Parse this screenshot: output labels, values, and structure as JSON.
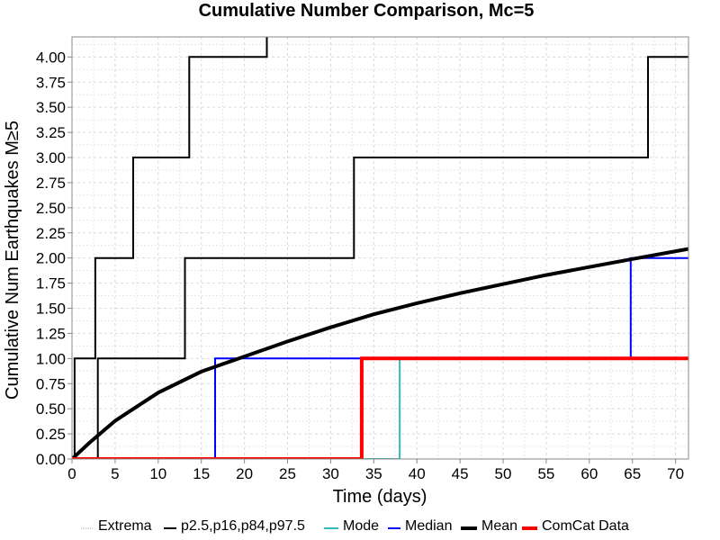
{
  "chart_data": {
    "type": "line",
    "title": "Cumulative Number Comparison, Mc=5",
    "xlabel": "Time (days)",
    "ylabel": "Cumulative Num Earthquakes M≥5",
    "xlim": [
      0,
      71.5
    ],
    "ylim": [
      0,
      4.2
    ],
    "x_ticks": [
      0,
      5,
      10,
      15,
      20,
      25,
      30,
      35,
      40,
      45,
      50,
      55,
      60,
      65,
      70
    ],
    "x_tick_labels": [
      "0",
      "5",
      "10",
      "15",
      "20",
      "25",
      "30",
      "35",
      "40",
      "45",
      "50",
      "55",
      "60",
      "65",
      "70"
    ],
    "y_ticks": [
      0,
      0.25,
      0.5,
      0.75,
      1.0,
      1.25,
      1.5,
      1.75,
      2.0,
      2.25,
      2.5,
      2.75,
      3.0,
      3.25,
      3.5,
      3.75,
      4.0
    ],
    "y_tick_labels": [
      "0.00",
      "0.25",
      "0.50",
      "0.75",
      "1.00",
      "1.25",
      "1.50",
      "1.75",
      "2.00",
      "2.25",
      "2.50",
      "2.75",
      "3.00",
      "3.25",
      "3.50",
      "3.75",
      "4.00"
    ],
    "grid": true,
    "legend_position": "bottom",
    "series": [
      {
        "name": "p2.5,p16,p84,p97.5",
        "color": "#000000",
        "style": "step",
        "points": [
          [
            0,
            0
          ],
          [
            0.3,
            0
          ],
          [
            0.3,
            1
          ],
          [
            2.7,
            1
          ],
          [
            2.7,
            2
          ],
          [
            7.1,
            2
          ],
          [
            7.1,
            3
          ],
          [
            13.6,
            3
          ],
          [
            13.6,
            4
          ],
          [
            22.6,
            4
          ],
          [
            22.6,
            4.2
          ]
        ]
      },
      {
        "name": "",
        "color": "#000000",
        "style": "step",
        "points": [
          [
            0,
            0
          ],
          [
            3.0,
            0
          ],
          [
            3.0,
            1
          ],
          [
            13.1,
            1
          ],
          [
            13.1,
            2
          ],
          [
            32.7,
            2
          ],
          [
            32.7,
            3
          ],
          [
            66.8,
            3
          ],
          [
            66.8,
            4
          ],
          [
            71.5,
            4
          ]
        ]
      },
      {
        "name": "Mode",
        "color": "#33bbbb",
        "style": "step",
        "points": [
          [
            0,
            0
          ],
          [
            38.0,
            0
          ],
          [
            38.0,
            1
          ],
          [
            71.5,
            1
          ]
        ]
      },
      {
        "name": "Median",
        "color": "#0000ff",
        "style": "step",
        "points": [
          [
            0,
            0
          ],
          [
            16.6,
            0
          ],
          [
            16.6,
            1
          ],
          [
            64.8,
            1
          ],
          [
            64.8,
            2
          ],
          [
            71.5,
            2
          ]
        ]
      },
      {
        "name": "Mean",
        "color": "#000000",
        "style": "line",
        "points": [
          [
            0,
            0
          ],
          [
            2,
            0.16
          ],
          [
            5,
            0.38
          ],
          [
            10,
            0.66
          ],
          [
            15,
            0.87
          ],
          [
            20,
            1.02
          ],
          [
            25,
            1.17
          ],
          [
            30,
            1.31
          ],
          [
            35,
            1.44
          ],
          [
            40,
            1.55
          ],
          [
            45,
            1.65
          ],
          [
            50,
            1.74
          ],
          [
            55,
            1.83
          ],
          [
            60,
            1.91
          ],
          [
            65,
            1.99
          ],
          [
            71.5,
            2.09
          ]
        ]
      },
      {
        "name": "ComCat Data",
        "color": "#ff0000",
        "style": "step",
        "points": [
          [
            0,
            0
          ],
          [
            33.6,
            0
          ],
          [
            33.6,
            1
          ],
          [
            71.5,
            1
          ]
        ]
      }
    ],
    "legend": [
      {
        "label": "Extrema",
        "color": "#aaaaaa"
      },
      {
        "label": "p2.5,p16,p84,p97.5",
        "color": "#000000"
      },
      {
        "label": "Mode",
        "color": "#33bbbb"
      },
      {
        "label": "Median",
        "color": "#0000ff"
      },
      {
        "label": "Mean",
        "color": "#000000"
      },
      {
        "label": "ComCat Data",
        "color": "#ff0000"
      }
    ]
  }
}
